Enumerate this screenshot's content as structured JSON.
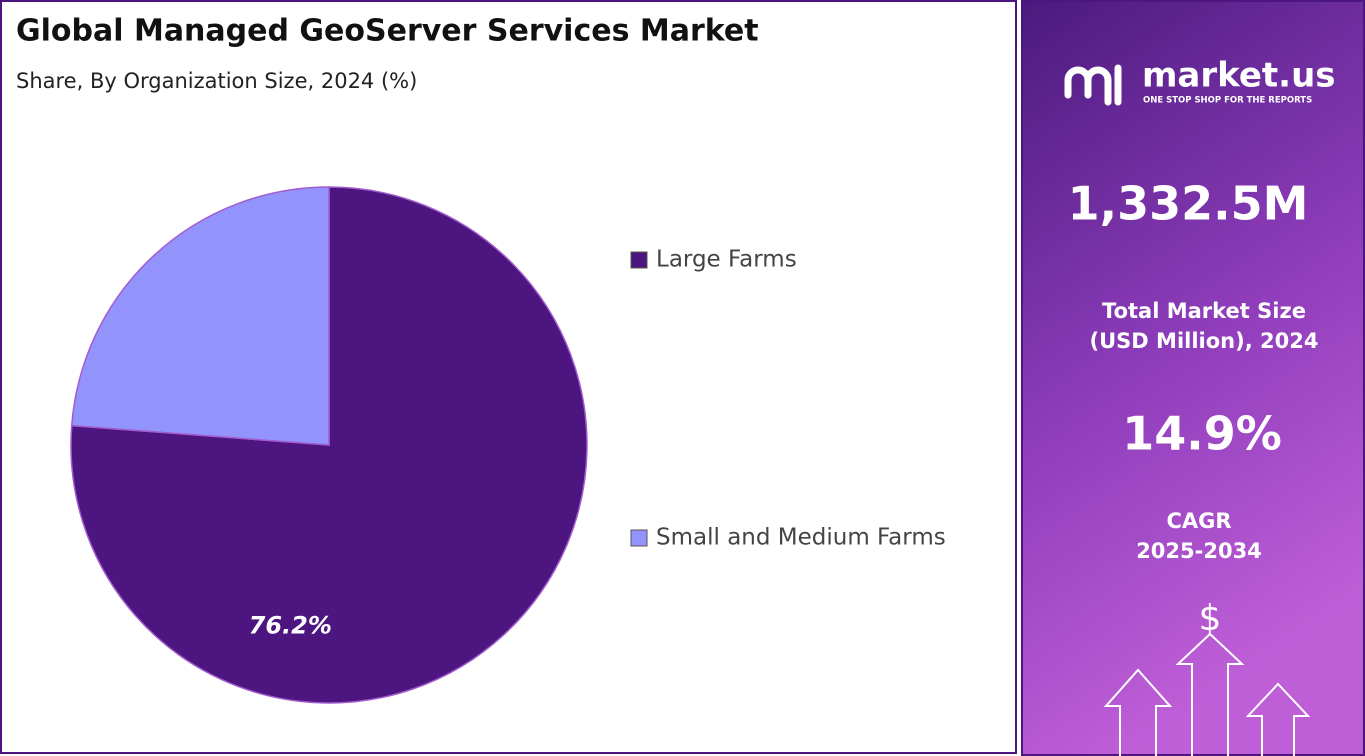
{
  "chart_data": {
    "type": "pie",
    "title": "Global Managed GeoServer Services Market",
    "subtitle": "Share, By Organization Size, 2024 (%)",
    "categories": [
      "Large Farms",
      "Small and Medium Farms"
    ],
    "values": [
      76.2,
      23.8
    ],
    "value_labels": [
      "76.2%",
      null
    ],
    "colors": [
      "#4d1580",
      "#9393fc"
    ],
    "legend": "right"
  },
  "panel": {
    "logo": "market.us",
    "tagline": "ONE STOP SHOP FOR THE REPORTS",
    "market_size": "1,332.5M",
    "market_size_label": [
      "Total Market Size",
      "(USD Million), 2024"
    ],
    "cagr": "14.9%",
    "cagr_label": [
      "CAGR",
      "2025-2034"
    ],
    "icon": "$"
  }
}
